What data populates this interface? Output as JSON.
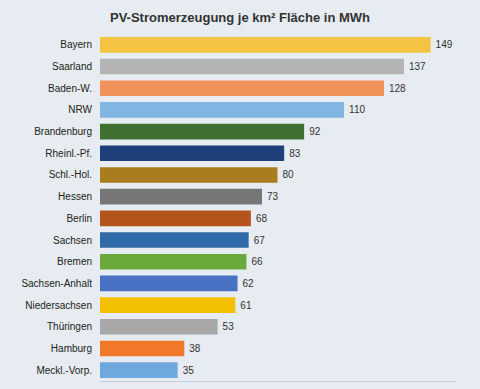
{
  "chart_data": {
    "type": "bar",
    "title": "PV-Stromerzeugung je km² Fläche in MWh",
    "orientation": "horizontal",
    "categories": [
      "Bayern",
      "Saarland",
      "Baden-W.",
      "NRW",
      "Brandenburg",
      "Rheinl.-Pf.",
      "Schl.-Hol.",
      "Hessen",
      "Berlin",
      "Sachsen",
      "Bremen",
      "Sachsen-Anhalt",
      "Niedersachsen",
      "Thüringen",
      "Hamburg",
      "Meckl.-Vorp."
    ],
    "values": [
      149,
      137,
      128,
      110,
      92,
      83,
      80,
      73,
      68,
      67,
      66,
      62,
      61,
      53,
      38,
      35
    ],
    "colors": [
      "#f5c342",
      "#b4b4b4",
      "#f0935a",
      "#82b6e2",
      "#3f7030",
      "#1f3f7a",
      "#a77d1e",
      "#767676",
      "#b5541c",
      "#2d6aa6",
      "#6aaa3a",
      "#4a72c4",
      "#f2c000",
      "#a8a8a8",
      "#f07828",
      "#6fa8dc"
    ],
    "xlim": [
      0,
      160
    ],
    "data_labels": true,
    "tick_labels": "y",
    "grid": false
  }
}
